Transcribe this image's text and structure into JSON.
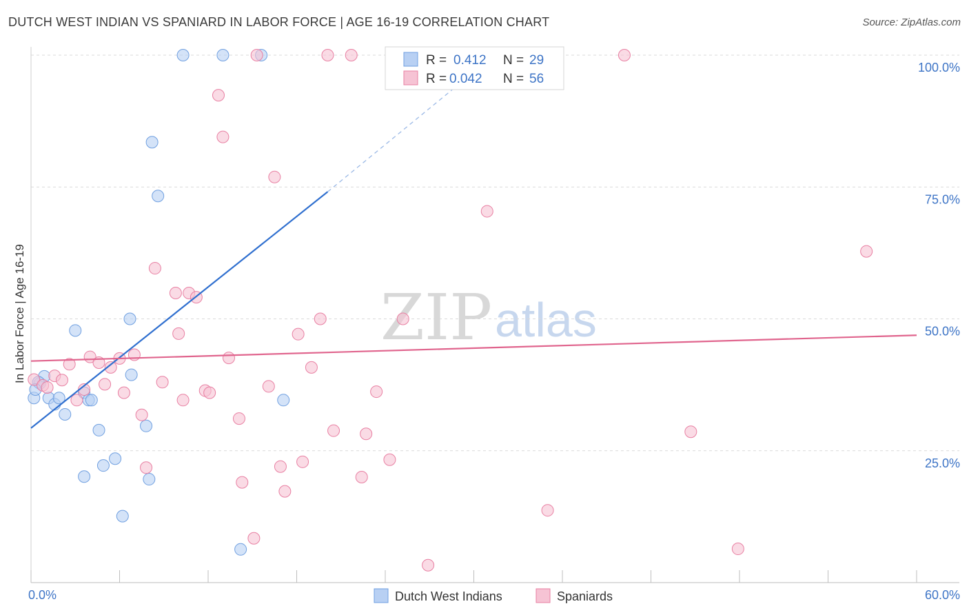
{
  "title": "DUTCH WEST INDIAN VS SPANIARD IN LABOR FORCE | AGE 16-19 CORRELATION CHART",
  "source": "Source: ZipAtlas.com",
  "watermark": {
    "zip": "ZIP",
    "atlas": "atlas"
  },
  "colors": {
    "blue": "#6f9fe0",
    "blue_fill": "#b8d0f3",
    "blue_line": "#2f6fcf",
    "pink": "#e87fa2",
    "pink_fill": "#f6c3d4",
    "pink_line": "#e0648d",
    "grid": "#d9d9d9",
    "tick": "#3d74c6"
  },
  "legend": {
    "r_label": "R =",
    "n_label": "N =",
    "series": [
      {
        "r": "0.412",
        "n": "29"
      },
      {
        "r": "0.042",
        "n": "56"
      }
    ]
  },
  "chart_data": {
    "type": "scatter",
    "title": "DUTCH WEST INDIAN VS SPANIARD IN LABOR FORCE | AGE 16-19 CORRELATION CHART",
    "xlabel": "",
    "ylabel": "In Labor Force | Age 16-19",
    "xlim": [
      0,
      60
    ],
    "ylim": [
      0,
      100
    ],
    "x_tick_labels": [
      "0.0%",
      "60.0%"
    ],
    "y_ticks": [
      25,
      50,
      75,
      100
    ],
    "y_tick_labels": [
      "25.0%",
      "50.0%",
      "75.0%",
      "100.0%"
    ],
    "legend_position": "top-center",
    "series": [
      {
        "name": "Dutch West Indians",
        "color": "#6f9fe0",
        "r": 0.412,
        "n": 29,
        "trend": {
          "x0": 0,
          "y0": 29.3,
          "x1": 20.1,
          "y1": 74.1,
          "dashed_to_x": 30,
          "dashed_to_y": 96.8
        },
        "points": [
          [
            0.2,
            35.0
          ],
          [
            0.6,
            37.8
          ],
          [
            0.9,
            39.1
          ],
          [
            1.2,
            35.0
          ],
          [
            1.6,
            33.8
          ],
          [
            1.9,
            35.0
          ],
          [
            2.3,
            31.9
          ],
          [
            3.0,
            47.8
          ],
          [
            3.6,
            36.0
          ],
          [
            3.9,
            34.6
          ],
          [
            4.1,
            34.6
          ],
          [
            4.6,
            28.9
          ],
          [
            4.9,
            22.2
          ],
          [
            5.7,
            23.5
          ],
          [
            6.2,
            12.6
          ],
          [
            6.7,
            50.0
          ],
          [
            6.8,
            39.4
          ],
          [
            7.8,
            29.7
          ],
          [
            8.0,
            19.6
          ],
          [
            8.2,
            83.5
          ],
          [
            8.6,
            73.3
          ],
          [
            3.6,
            20.1
          ],
          [
            10.3,
            100.0
          ],
          [
            13.0,
            100.0
          ],
          [
            14.2,
            6.3
          ],
          [
            15.6,
            100.0
          ],
          [
            17.1,
            34.6
          ],
          [
            0.5,
            38.0
          ],
          [
            0.3,
            36.6
          ]
        ]
      },
      {
        "name": "Spaniards",
        "color": "#e87fa2",
        "r": 0.042,
        "n": 56,
        "trend": {
          "x0": 0,
          "y0": 42.0,
          "x1": 60,
          "y1": 46.9
        },
        "points": [
          [
            0.2,
            38.5
          ],
          [
            0.8,
            37.4
          ],
          [
            1.1,
            37.0
          ],
          [
            1.6,
            39.2
          ],
          [
            2.1,
            38.4
          ],
          [
            2.6,
            41.4
          ],
          [
            3.1,
            34.6
          ],
          [
            3.6,
            36.6
          ],
          [
            4.0,
            42.8
          ],
          [
            4.6,
            41.7
          ],
          [
            5.0,
            37.6
          ],
          [
            5.4,
            40.8
          ],
          [
            6.0,
            42.5
          ],
          [
            6.3,
            36.0
          ],
          [
            7.0,
            43.2
          ],
          [
            7.5,
            31.8
          ],
          [
            7.8,
            21.8
          ],
          [
            8.4,
            59.6
          ],
          [
            8.9,
            38.0
          ],
          [
            9.8,
            54.9
          ],
          [
            10.3,
            34.6
          ],
          [
            10.7,
            54.9
          ],
          [
            11.2,
            54.1
          ],
          [
            11.8,
            36.4
          ],
          [
            12.1,
            36.0
          ],
          [
            12.7,
            92.4
          ],
          [
            13.0,
            84.5
          ],
          [
            13.4,
            42.6
          ],
          [
            14.1,
            31.1
          ],
          [
            14.3,
            19.0
          ],
          [
            15.1,
            8.4
          ],
          [
            15.3,
            100.0
          ],
          [
            16.1,
            37.2
          ],
          [
            16.5,
            76.9
          ],
          [
            16.9,
            22.0
          ],
          [
            17.2,
            17.3
          ],
          [
            18.1,
            47.1
          ],
          [
            18.4,
            22.9
          ],
          [
            19.0,
            40.8
          ],
          [
            19.6,
            50.0
          ],
          [
            20.1,
            100.0
          ],
          [
            20.5,
            28.8
          ],
          [
            21.7,
            100.0
          ],
          [
            22.4,
            20.0
          ],
          [
            22.7,
            28.2
          ],
          [
            23.4,
            36.2
          ],
          [
            24.3,
            23.3
          ],
          [
            25.2,
            50.0
          ],
          [
            26.9,
            3.3
          ],
          [
            30.9,
            70.4
          ],
          [
            35.0,
            13.7
          ],
          [
            40.2,
            100.0
          ],
          [
            44.7,
            28.6
          ],
          [
            47.9,
            6.4
          ],
          [
            56.6,
            62.8
          ],
          [
            10.0,
            47.2
          ]
        ]
      }
    ]
  },
  "bottom_legend": [
    "Dutch West Indians",
    "Spaniards"
  ]
}
